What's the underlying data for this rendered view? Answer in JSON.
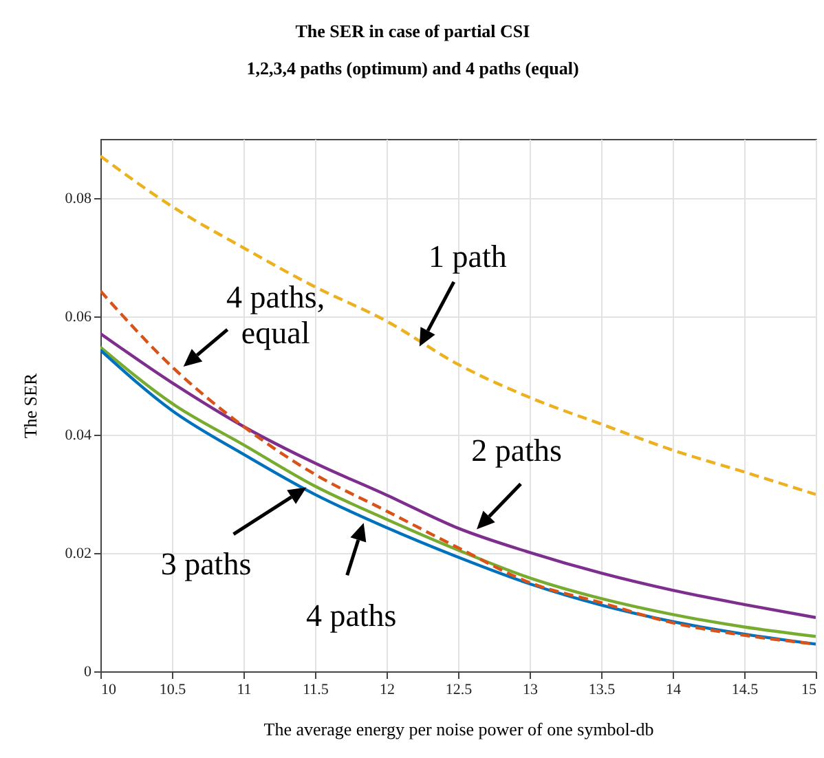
{
  "chart_data": {
    "type": "line",
    "title": "The SER in case of partial CSI",
    "subtitle": "1,2,3,4 paths (optimum) and 4 paths (equal)",
    "xlabel": "The average energy per noise power of one symbol-db",
    "ylabel": "The SER",
    "x": [
      10,
      10.5,
      11,
      11.5,
      12,
      12.5,
      13,
      13.5,
      14,
      14.5,
      15
    ],
    "series": [
      {
        "color": "#edb120",
        "line_style": "dashed",
        "values": [
          0.0871,
          0.0786,
          0.0716,
          0.065,
          0.0592,
          0.0519,
          0.0463,
          0.0418,
          0.0374,
          0.0337,
          0.0299
        ]
      },
      {
        "color": "#7e2f8e",
        "line_style": "solid",
        "values": [
          0.0571,
          0.0488,
          0.0414,
          0.0352,
          0.0298,
          0.0242,
          0.0201,
          0.0166,
          0.0137,
          0.0113,
          0.0091
        ]
      },
      {
        "color": "#77ac30",
        "line_style": "solid",
        "values": [
          0.0548,
          0.0453,
          0.0383,
          0.0313,
          0.0257,
          0.0205,
          0.0158,
          0.0123,
          0.0096,
          0.0075,
          0.0059
        ]
      },
      {
        "color": "#0072bd",
        "line_style": "solid",
        "values": [
          0.0543,
          0.0441,
          0.0367,
          0.0299,
          0.0243,
          0.0193,
          0.0148,
          0.0112,
          0.0084,
          0.0063,
          0.0046
        ]
      },
      {
        "color": "#d95319",
        "line_style": "dashed",
        "values": [
          0.0643,
          0.0515,
          0.0414,
          0.0333,
          0.0271,
          0.0209,
          0.015,
          0.0116,
          0.0082,
          0.0061,
          0.0046
        ]
      }
    ],
    "xlim": [
      10,
      15
    ],
    "xticks": [
      10,
      10.5,
      11,
      11.5,
      12,
      12.5,
      13,
      13.5,
      14,
      14.5,
      15
    ],
    "ylim": [
      0,
      0.09
    ],
    "yticks": [
      0,
      0.02,
      0.04,
      0.06,
      0.08
    ],
    "grid": true,
    "marker": "none",
    "annotations": [
      {
        "text": "1 path",
        "x": 12.23,
        "y": 0.0549
      },
      {
        "text": "4 paths,\nequal",
        "x": 10.58,
        "y": 0.0515
      },
      {
        "text": "2 paths",
        "x": 12.63,
        "y": 0.024
      },
      {
        "text": "3 paths",
        "x": 11.44,
        "y": 0.0311
      },
      {
        "text": "4 paths",
        "x": 11.84,
        "y": 0.0251
      }
    ]
  }
}
